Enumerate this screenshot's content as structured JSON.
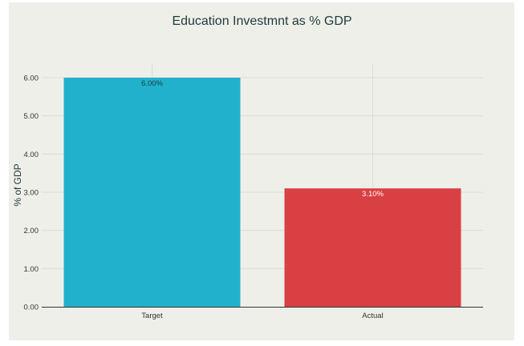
{
  "chart_data": {
    "type": "bar",
    "title": "Education Investmnt as % GDP",
    "xlabel": "",
    "ylabel": "% of GDP",
    "categories": [
      "Target",
      "Actual"
    ],
    "values": [
      6.0,
      3.1
    ],
    "data_labels": [
      "6.00%",
      "3.10%"
    ],
    "ylim": [
      0,
      6.3
    ],
    "y_ticks": [
      "0.00",
      "1.00",
      "2.00",
      "3.00",
      "4.00",
      "5.00",
      "6.00"
    ],
    "bar_colors": [
      "#21b1cc",
      "#d94043"
    ],
    "data_label_colors": [
      "#1f3a3d",
      "#ffffff"
    ],
    "grid": true,
    "legend": "none"
  }
}
